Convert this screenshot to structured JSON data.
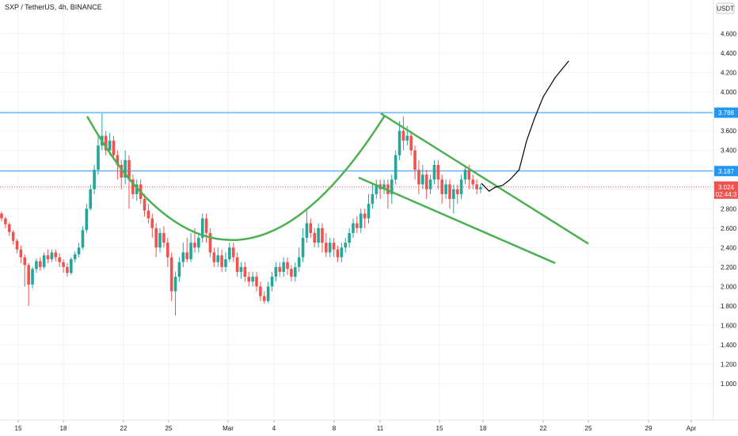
{
  "header": {
    "title": "SXP / TetherUS, 4h, BINANCE",
    "currency": "USDT"
  },
  "colors": {
    "up": "#26a69a",
    "down": "#ef5350",
    "pattern": "#4caf50",
    "level_line": "#2196f3",
    "projection": "#000000",
    "grid": "#f0f3fa"
  },
  "chart_data": {
    "type": "candlestick",
    "title": "SXP / TetherUS, 4h, BINANCE",
    "x_ticks": [
      "15",
      "18",
      "22",
      "25",
      "Mar",
      "4",
      "8",
      "11",
      "15",
      "18",
      "22",
      "25",
      "29",
      "Apr"
    ],
    "y_ticks": [
      "4.600",
      "4.400",
      "4.200",
      "4.000",
      "3.800",
      "3.600",
      "3.400",
      "3.200",
      "3.000",
      "2.800",
      "2.600",
      "2.400",
      "2.200",
      "2.000",
      "1.800",
      "1.600",
      "1.400",
      "1.200",
      "1.000"
    ],
    "ylim": [
      0.8,
      4.8
    ],
    "grid": true,
    "horizontal_levels": [
      {
        "value": 3.788,
        "label": "3.788",
        "color": "#2196f3"
      },
      {
        "value": 3.187,
        "label": "3.187",
        "color": "#2196f3"
      }
    ],
    "last_price": {
      "value": 3.024,
      "label": "3.024",
      "countdown": "02:44:3"
    },
    "candles": [
      [
        2.75,
        2.7,
        2.77,
        2.67
      ],
      [
        2.7,
        2.64,
        2.72,
        2.6
      ],
      [
        2.64,
        2.56,
        2.66,
        2.52
      ],
      [
        2.56,
        2.47,
        2.58,
        2.43
      ],
      [
        2.47,
        2.38,
        2.49,
        2.34
      ],
      [
        2.38,
        2.3,
        2.42,
        2.24
      ],
      [
        2.3,
        2.22,
        2.33,
        2.0
      ],
      [
        2.22,
        2.02,
        2.24,
        1.8
      ],
      [
        2.02,
        2.18,
        2.2,
        1.98
      ],
      [
        2.18,
        2.26,
        2.29,
        2.14
      ],
      [
        2.26,
        2.2,
        2.3,
        2.16
      ],
      [
        2.2,
        2.32,
        2.35,
        2.18
      ],
      [
        2.32,
        2.28,
        2.38,
        2.24
      ],
      [
        2.28,
        2.35,
        2.38,
        2.25
      ],
      [
        2.35,
        2.3,
        2.38,
        2.26
      ],
      [
        2.3,
        2.25,
        2.34,
        2.2
      ],
      [
        2.25,
        2.2,
        2.28,
        2.14
      ],
      [
        2.2,
        2.14,
        2.24,
        2.1
      ],
      [
        2.14,
        2.28,
        2.3,
        2.12
      ],
      [
        2.28,
        2.33,
        2.36,
        2.25
      ],
      [
        2.33,
        2.4,
        2.45,
        2.3
      ],
      [
        2.4,
        2.58,
        2.62,
        2.38
      ],
      [
        2.58,
        2.8,
        2.85,
        2.55
      ],
      [
        2.8,
        3.0,
        3.05,
        2.78
      ],
      [
        3.0,
        3.2,
        3.25,
        2.95
      ],
      [
        3.2,
        3.45,
        3.55,
        3.15
      ],
      [
        3.45,
        3.55,
        3.78,
        3.4
      ],
      [
        3.55,
        3.4,
        3.6,
        3.35
      ],
      [
        3.4,
        3.5,
        3.58,
        3.35
      ],
      [
        3.5,
        3.35,
        3.55,
        3.3
      ],
      [
        3.35,
        3.25,
        3.4,
        3.1
      ],
      [
        3.25,
        3.12,
        3.3,
        3.0
      ],
      [
        3.12,
        3.3,
        3.4,
        3.05
      ],
      [
        3.3,
        3.1,
        3.35,
        2.8
      ],
      [
        3.1,
        2.95,
        3.15,
        2.9
      ],
      [
        2.95,
        3.05,
        3.1,
        2.88
      ],
      [
        3.05,
        2.9,
        3.1,
        2.85
      ],
      [
        2.9,
        2.78,
        2.95,
        2.72
      ],
      [
        2.78,
        2.7,
        2.85,
        2.65
      ],
      [
        2.7,
        2.6,
        2.75,
        2.5
      ],
      [
        2.6,
        2.4,
        2.65,
        2.3
      ],
      [
        2.4,
        2.55,
        2.6,
        2.35
      ],
      [
        2.55,
        2.45,
        2.62,
        2.4
      ],
      [
        2.45,
        2.3,
        2.5,
        2.2
      ],
      [
        2.3,
        1.95,
        2.35,
        1.85
      ],
      [
        1.95,
        2.1,
        2.15,
        1.7
      ],
      [
        2.1,
        2.25,
        2.3,
        2.05
      ],
      [
        2.25,
        2.35,
        2.45,
        2.2
      ],
      [
        2.35,
        2.28,
        2.5,
        2.25
      ],
      [
        2.28,
        2.45,
        2.55,
        2.25
      ],
      [
        2.45,
        2.4,
        2.6,
        2.35
      ],
      [
        2.4,
        2.5,
        2.55,
        2.35
      ],
      [
        2.5,
        2.7,
        2.75,
        2.45
      ],
      [
        2.7,
        2.55,
        2.75,
        2.45
      ],
      [
        2.55,
        2.35,
        2.6,
        2.3
      ],
      [
        2.35,
        2.25,
        2.4,
        2.2
      ],
      [
        2.25,
        2.32,
        2.4,
        2.2
      ],
      [
        2.32,
        2.2,
        2.38,
        2.15
      ],
      [
        2.2,
        2.28,
        2.35,
        2.15
      ],
      [
        2.28,
        2.4,
        2.45,
        2.25
      ],
      [
        2.4,
        2.3,
        2.45,
        2.25
      ],
      [
        2.3,
        2.15,
        2.35,
        2.1
      ],
      [
        2.15,
        2.2,
        2.25,
        2.08
      ],
      [
        2.2,
        2.1,
        2.25,
        2.05
      ],
      [
        2.1,
        2.05,
        2.15,
        2.0
      ],
      [
        2.05,
        2.1,
        2.15,
        2.0
      ],
      [
        2.1,
        2.0,
        2.15,
        1.95
      ],
      [
        2.0,
        1.9,
        2.05,
        1.85
      ],
      [
        1.9,
        1.85,
        1.95,
        1.82
      ],
      [
        1.85,
        2.0,
        2.05,
        1.83
      ],
      [
        2.0,
        2.1,
        2.15,
        1.95
      ],
      [
        2.1,
        2.2,
        2.25,
        2.05
      ],
      [
        2.2,
        2.15,
        2.25,
        2.1
      ],
      [
        2.15,
        2.25,
        2.3,
        2.1
      ],
      [
        2.25,
        2.18,
        2.3,
        2.12
      ],
      [
        2.18,
        2.1,
        2.22,
        2.05
      ],
      [
        2.1,
        2.2,
        2.25,
        2.05
      ],
      [
        2.2,
        2.3,
        2.4,
        2.15
      ],
      [
        2.3,
        2.5,
        2.6,
        2.25
      ],
      [
        2.5,
        2.65,
        2.78,
        2.45
      ],
      [
        2.65,
        2.55,
        2.7,
        2.5
      ],
      [
        2.55,
        2.45,
        2.6,
        2.4
      ],
      [
        2.45,
        2.6,
        2.65,
        2.4
      ],
      [
        2.6,
        2.45,
        2.65,
        2.35
      ],
      [
        2.45,
        2.35,
        2.55,
        2.3
      ],
      [
        2.35,
        2.45,
        2.5,
        2.3
      ],
      [
        2.45,
        2.38,
        2.5,
        2.3
      ],
      [
        2.38,
        2.3,
        2.42,
        2.25
      ],
      [
        2.3,
        2.4,
        2.45,
        2.25
      ],
      [
        2.4,
        2.45,
        2.5,
        2.35
      ],
      [
        2.45,
        2.55,
        2.6,
        2.4
      ],
      [
        2.55,
        2.65,
        2.7,
        2.5
      ],
      [
        2.65,
        2.6,
        2.72,
        2.55
      ],
      [
        2.6,
        2.75,
        2.8,
        2.55
      ],
      [
        2.75,
        2.7,
        2.8,
        2.6
      ],
      [
        2.7,
        2.85,
        2.95,
        2.65
      ],
      [
        2.85,
        2.95,
        3.05,
        2.8
      ],
      [
        2.95,
        3.05,
        3.1,
        2.9
      ],
      [
        3.05,
        3.0,
        3.1,
        2.9
      ],
      [
        3.0,
        3.05,
        3.1,
        2.95
      ],
      [
        3.05,
        2.95,
        3.1,
        2.8
      ],
      [
        2.95,
        3.1,
        3.15,
        2.85
      ],
      [
        3.1,
        3.35,
        3.4,
        3.05
      ],
      [
        3.35,
        3.6,
        3.7,
        3.3
      ],
      [
        3.6,
        3.5,
        3.75,
        3.4
      ],
      [
        3.5,
        3.55,
        3.65,
        3.45
      ],
      [
        3.55,
        3.4,
        3.6,
        3.35
      ],
      [
        3.4,
        3.2,
        3.45,
        3.1
      ],
      [
        3.2,
        3.05,
        3.3,
        2.95
      ],
      [
        3.05,
        3.15,
        3.25,
        3.0
      ],
      [
        3.15,
        3.0,
        3.2,
        2.9
      ],
      [
        3.0,
        3.1,
        3.15,
        2.95
      ],
      [
        3.1,
        3.25,
        3.3,
        3.05
      ],
      [
        3.25,
        3.1,
        3.3,
        3.0
      ],
      [
        3.1,
        2.95,
        3.15,
        2.85
      ],
      [
        2.95,
        3.05,
        3.1,
        2.9
      ],
      [
        3.05,
        2.9,
        3.1,
        2.8
      ],
      [
        2.9,
        3.0,
        3.05,
        2.75
      ],
      [
        3.0,
        2.95,
        3.05,
        2.85
      ],
      [
        2.95,
        3.1,
        3.15,
        2.9
      ],
      [
        3.1,
        3.2,
        3.25,
        3.05
      ],
      [
        3.2,
        3.1,
        3.25,
        3.0
      ],
      [
        3.1,
        3.05,
        3.15,
        3.0
      ],
      [
        3.05,
        3.0,
        3.1,
        2.95
      ],
      [
        3.0,
        3.02,
        3.06,
        2.96
      ]
    ],
    "annotations": [
      {
        "type": "cup-curve",
        "points": [
          [
            2.75,
            3.75
          ],
          [
            2.85,
            2.0
          ],
          [
            5.05,
            3.76
          ]
        ]
      },
      {
        "type": "trendline",
        "from": [
          11.05,
          3.78
        ],
        "to": [
          25.0,
          2.44
        ]
      },
      {
        "type": "trendline",
        "from": [
          9.6,
          3.12
        ],
        "to": [
          22.8,
          2.24
        ]
      },
      {
        "type": "projection",
        "path": [
          [
            17.9,
            3.06
          ],
          [
            18.4,
            2.98
          ],
          [
            18.8,
            3.02
          ],
          [
            19.3,
            3.04
          ],
          [
            19.8,
            3.1
          ],
          [
            20.4,
            3.2
          ],
          [
            20.9,
            3.5
          ],
          [
            21.4,
            3.72
          ],
          [
            22.0,
            3.95
          ],
          [
            22.8,
            4.15
          ],
          [
            23.7,
            4.32
          ]
        ]
      }
    ]
  }
}
